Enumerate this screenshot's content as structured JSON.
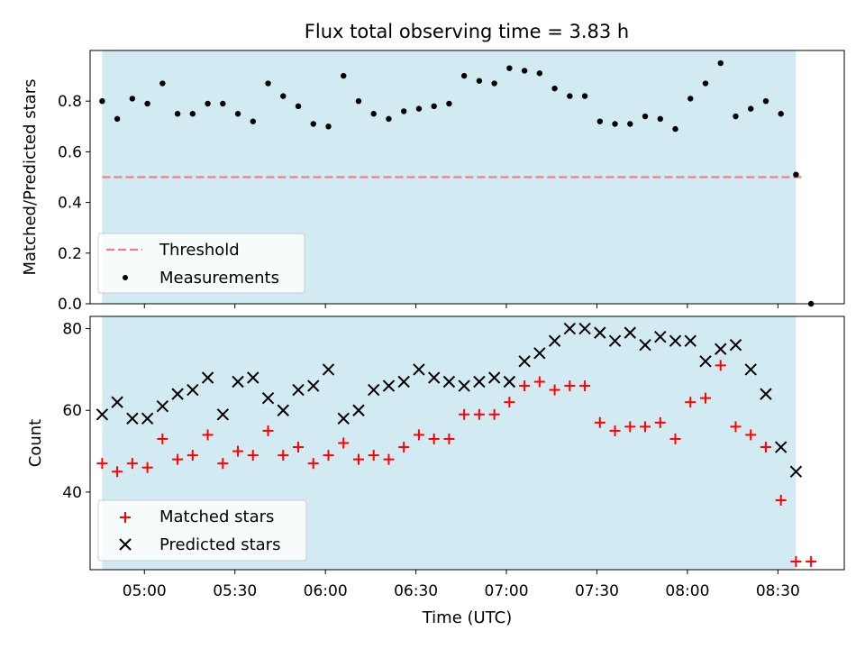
{
  "chart_data": {
    "title": "Flux total observing time = 3.83 h",
    "xlabel": "Time (UTC)",
    "x_range": [
      "04:42",
      "08:52"
    ],
    "x_ticks": [
      "05:00",
      "05:30",
      "06:00",
      "06:30",
      "07:00",
      "07:30",
      "08:00",
      "08:30"
    ],
    "shaded_span": {
      "start": "04:46",
      "end": "08:36",
      "color": "#add8e6"
    },
    "colors": {
      "threshold": "#f08080",
      "measurements": "#000000",
      "matched": "#ff0000",
      "predicted": "#000000",
      "shade": "#add8e6"
    },
    "panels": [
      {
        "type": "scatter",
        "ylabel": "Matched/Predicted stars",
        "ylim": [
          0,
          1.0
        ],
        "y_ticks": [
          "0.0",
          "0.2",
          "0.4",
          "0.6",
          "0.8"
        ],
        "legend": {
          "position": "lower-left",
          "entries": [
            "Threshold",
            "Measurements"
          ]
        },
        "threshold": {
          "name": "Threshold",
          "value": 0.5,
          "x_start": "04:46",
          "x_end": "08:38"
        },
        "series": [
          {
            "name": "Measurements",
            "marker": "dot",
            "x": [
              "04:46",
              "04:51",
              "04:56",
              "05:01",
              "05:06",
              "05:11",
              "05:16",
              "05:21",
              "05:26",
              "05:31",
              "05:36",
              "05:41",
              "05:46",
              "05:51",
              "05:56",
              "06:01",
              "06:06",
              "06:11",
              "06:16",
              "06:21",
              "06:26",
              "06:31",
              "06:36",
              "06:41",
              "06:46",
              "06:51",
              "06:56",
              "07:01",
              "07:06",
              "07:11",
              "07:16",
              "07:21",
              "07:26",
              "07:31",
              "07:36",
              "07:41",
              "07:46",
              "07:51",
              "07:56",
              "08:01",
              "08:06",
              "08:11",
              "08:16",
              "08:21",
              "08:26",
              "08:31",
              "08:36",
              "08:41"
            ],
            "values": [
              0.8,
              0.73,
              0.81,
              0.79,
              0.87,
              0.75,
              0.75,
              0.79,
              0.79,
              0.75,
              0.72,
              0.87,
              0.82,
              0.78,
              0.71,
              0.7,
              0.9,
              0.8,
              0.75,
              0.73,
              0.76,
              0.77,
              0.78,
              0.79,
              0.9,
              0.88,
              0.87,
              0.93,
              0.92,
              0.91,
              0.85,
              0.82,
              0.82,
              0.72,
              0.71,
              0.71,
              0.74,
              0.73,
              0.69,
              0.81,
              0.87,
              0.95,
              0.74,
              0.77,
              0.8,
              0.75,
              0.51,
              0.0
            ]
          }
        ]
      },
      {
        "type": "scatter",
        "ylabel": "Count",
        "ylim": [
          21,
          83
        ],
        "y_ticks": [
          "40",
          "60",
          "80"
        ],
        "legend": {
          "position": "lower-left",
          "entries": [
            "Matched stars",
            "Predicted stars"
          ]
        },
        "series": [
          {
            "name": "Matched stars",
            "marker": "plus",
            "x": [
              "04:46",
              "04:51",
              "04:56",
              "05:01",
              "05:06",
              "05:11",
              "05:16",
              "05:21",
              "05:26",
              "05:31",
              "05:36",
              "05:41",
              "05:46",
              "05:51",
              "05:56",
              "06:01",
              "06:06",
              "06:11",
              "06:16",
              "06:21",
              "06:26",
              "06:31",
              "06:36",
              "06:41",
              "06:46",
              "06:51",
              "06:56",
              "07:01",
              "07:06",
              "07:11",
              "07:16",
              "07:21",
              "07:26",
              "07:31",
              "07:36",
              "07:41",
              "07:46",
              "07:51",
              "07:56",
              "08:01",
              "08:06",
              "08:11",
              "08:16",
              "08:21",
              "08:26",
              "08:31",
              "08:36",
              "08:41"
            ],
            "values": [
              47,
              45,
              47,
              46,
              53,
              48,
              49,
              54,
              47,
              50,
              49,
              55,
              49,
              51,
              47,
              49,
              52,
              48,
              49,
              48,
              51,
              54,
              53,
              53,
              59,
              59,
              59,
              62,
              66,
              67,
              65,
              66,
              66,
              57,
              55,
              56,
              56,
              57,
              53,
              62,
              63,
              71,
              56,
              54,
              51,
              38,
              23,
              23
            ]
          },
          {
            "name": "Predicted stars",
            "marker": "x",
            "x": [
              "04:46",
              "04:51",
              "04:56",
              "05:01",
              "05:06",
              "05:11",
              "05:16",
              "05:21",
              "05:26",
              "05:31",
              "05:36",
              "05:41",
              "05:46",
              "05:51",
              "05:56",
              "06:01",
              "06:06",
              "06:11",
              "06:16",
              "06:21",
              "06:26",
              "06:31",
              "06:36",
              "06:41",
              "06:46",
              "06:51",
              "06:56",
              "07:01",
              "07:06",
              "07:11",
              "07:16",
              "07:21",
              "07:26",
              "07:31",
              "07:36",
              "07:41",
              "07:46",
              "07:51",
              "07:56",
              "08:01",
              "08:06",
              "08:11",
              "08:16",
              "08:21",
              "08:26",
              "08:31",
              "08:36"
            ],
            "values": [
              59,
              62,
              58,
              58,
              61,
              64,
              65,
              68,
              59,
              67,
              68,
              63,
              60,
              65,
              66,
              70,
              58,
              60,
              65,
              66,
              67,
              70,
              68,
              67,
              66,
              67,
              68,
              67,
              72,
              74,
              77,
              80,
              80,
              79,
              77,
              79,
              76,
              78,
              77,
              77,
              72,
              75,
              76,
              70,
              64,
              51,
              45
            ]
          }
        ]
      }
    ]
  }
}
